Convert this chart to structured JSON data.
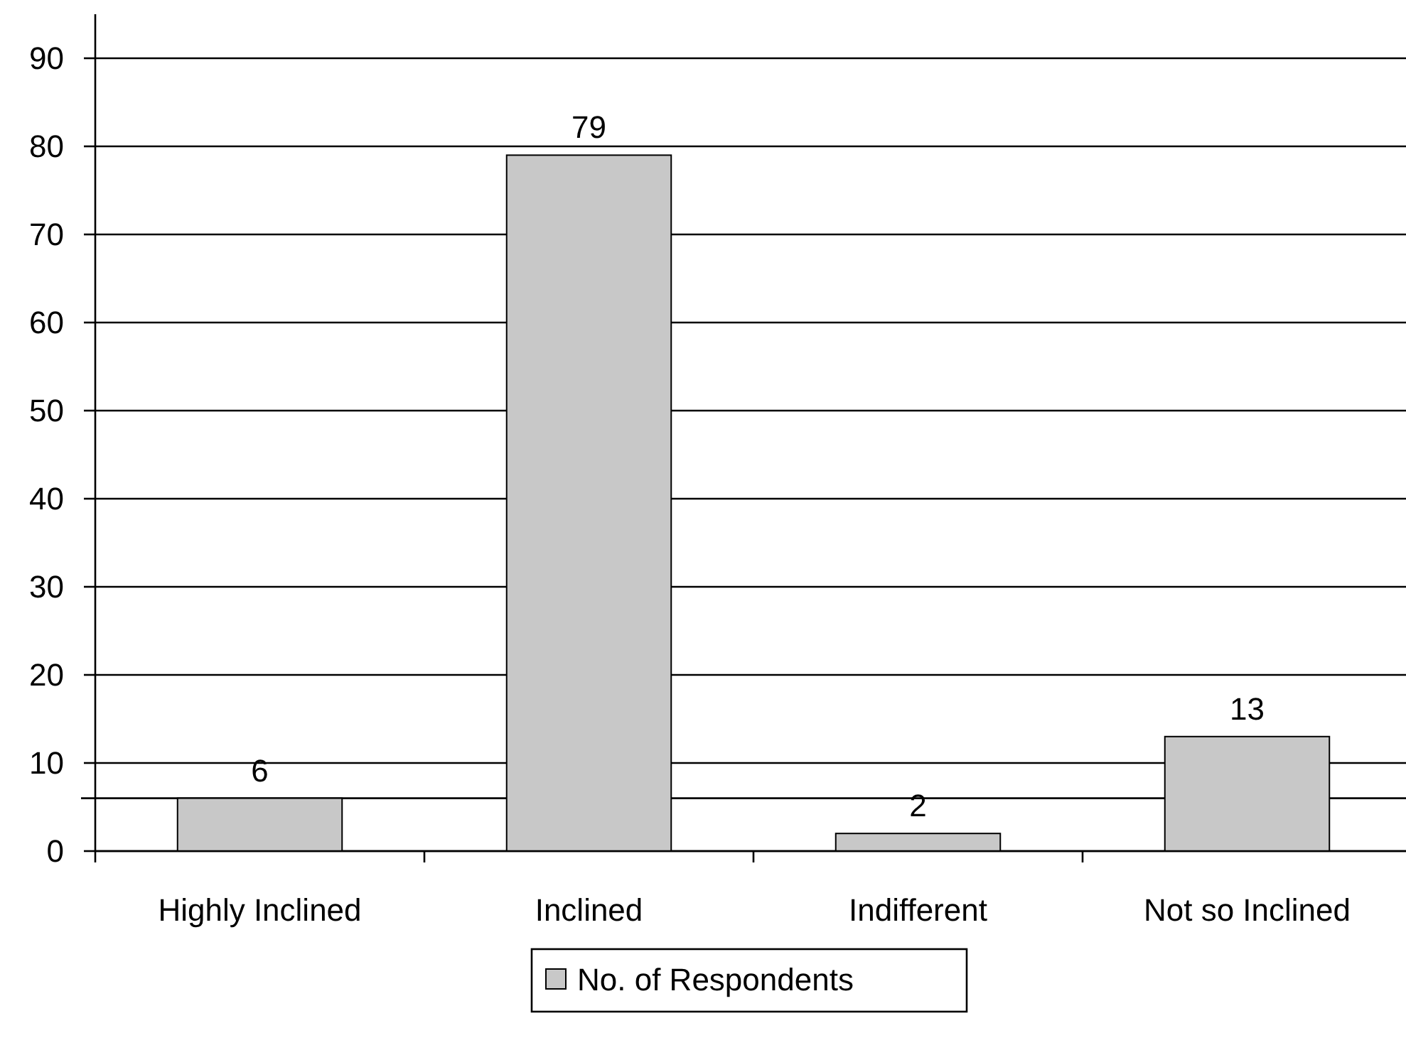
{
  "chart_data": {
    "type": "bar",
    "categories": [
      "Highly Inclined",
      "Inclined",
      "Indifferent",
      "Not so Inclined"
    ],
    "series": [
      {
        "name": "No. of Respondents",
        "color": "#c8c8c8",
        "values": [
          6,
          79,
          2,
          13
        ]
      }
    ],
    "ylim": [
      0,
      95
    ],
    "yticks": [
      0,
      10,
      20,
      30,
      40,
      50,
      60,
      70,
      80,
      90
    ],
    "grid": "y",
    "data_labels": true,
    "legend": "bottom",
    "ref_lines": [
      {
        "axis": "y",
        "value": 6
      }
    ]
  }
}
